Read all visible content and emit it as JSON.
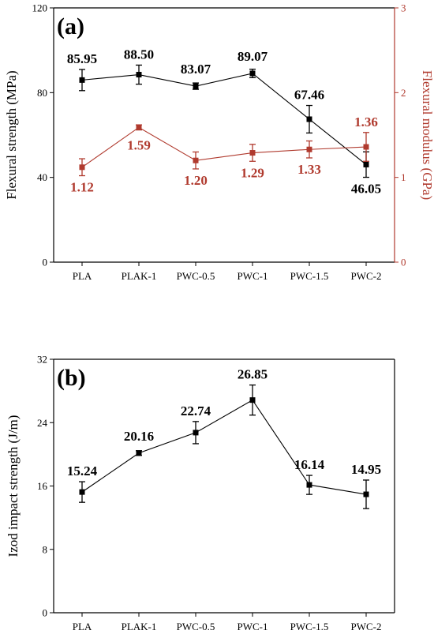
{
  "colors": {
    "primary": "#000000",
    "secondary": "#b03a2e"
  },
  "chart_data": [
    {
      "type": "line",
      "panel_label": "(a)",
      "categories": [
        "PLA",
        "PLAK-1",
        "PWC-0.5",
        "PWC-1",
        "PWC-1.5",
        "PWC-2"
      ],
      "ylabel": "Flexural strength (MPa)",
      "ylim": [
        0,
        120
      ],
      "yticks": [
        "0",
        "40",
        "80",
        "120"
      ],
      "y2label": "Flexural modulus (GPa)",
      "y2lim": [
        0,
        3
      ],
      "y2ticks": [
        "0",
        "1",
        "2",
        "3"
      ],
      "grid": false,
      "series": [
        {
          "axis": "left",
          "color": "#000000",
          "values": [
            85.95,
            88.5,
            83.07,
            89.07,
            67.46,
            46.05
          ],
          "errors": [
            5.0,
            4.5,
            1.5,
            2.0,
            6.5,
            6.0
          ],
          "labels": [
            "85.95",
            "88.50",
            "83.07",
            "89.07",
            "67.46",
            "46.05"
          ],
          "label_position": [
            "above",
            "above",
            "above",
            "above",
            "above",
            "below"
          ]
        },
        {
          "axis": "right",
          "color": "#b03a2e",
          "values": [
            1.12,
            1.59,
            1.2,
            1.29,
            1.33,
            1.36
          ],
          "errors": [
            0.1,
            0.03,
            0.1,
            0.1,
            0.1,
            0.17
          ],
          "labels": [
            "1.12",
            "1.59",
            "1.20",
            "1.29",
            "1.33",
            "1.36"
          ],
          "label_position": [
            "below",
            "below",
            "below",
            "below",
            "below",
            "above"
          ]
        }
      ]
    },
    {
      "type": "line",
      "panel_label": "(b)",
      "categories": [
        "PLA",
        "PLAK-1",
        "PWC-0.5",
        "PWC-1",
        "PWC-1.5",
        "PWC-2"
      ],
      "ylabel": "Izod impact strength (J/m)",
      "ylim": [
        0,
        32
      ],
      "yticks": [
        "0",
        "8",
        "16",
        "24",
        "32"
      ],
      "grid": false,
      "series": [
        {
          "axis": "left",
          "color": "#000000",
          "values": [
            15.24,
            20.16,
            22.74,
            26.85,
            16.14,
            14.95
          ],
          "errors": [
            1.3,
            0.3,
            1.4,
            1.9,
            1.2,
            1.8
          ],
          "labels": [
            "15.24",
            "20.16",
            "22.74",
            "26.85",
            "16.14",
            "14.95"
          ],
          "label_position": [
            "above",
            "above",
            "above",
            "above",
            "above",
            "above"
          ]
        }
      ]
    }
  ]
}
